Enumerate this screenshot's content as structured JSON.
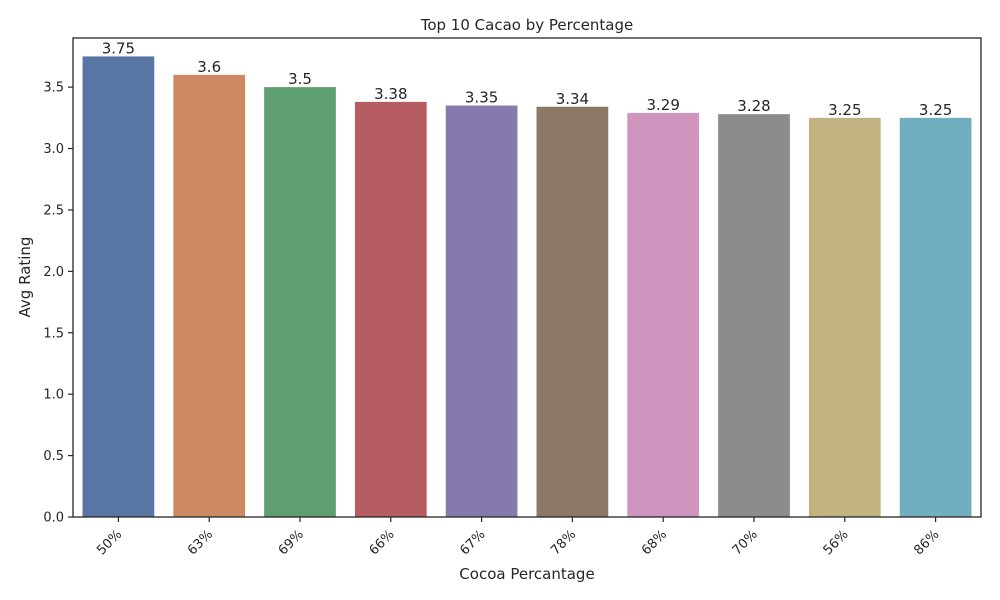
{
  "chart_data": {
    "type": "bar",
    "title": "Top 10 Cacao by Percentage",
    "xlabel": "Cocoa Percantage",
    "ylabel": "Avg Rating",
    "categories": [
      "50%",
      "63%",
      "69%",
      "66%",
      "67%",
      "78%",
      "68%",
      "70%",
      "56%",
      "86%"
    ],
    "values": [
      3.75,
      3.6,
      3.5,
      3.38,
      3.35,
      3.34,
      3.29,
      3.28,
      3.25,
      3.25
    ],
    "data_labels": [
      "3.75",
      "3.6",
      "3.5",
      "3.38",
      "3.35",
      "3.34",
      "3.29",
      "3.28",
      "3.25",
      "3.25"
    ],
    "ylim": [
      0,
      3.9
    ],
    "yticks": [
      0.0,
      0.5,
      1.0,
      1.5,
      2.0,
      2.5,
      3.0,
      3.5
    ],
    "ytick_labels": [
      "0.0",
      "0.5",
      "1.0",
      "1.5",
      "2.0",
      "2.5",
      "3.0",
      "3.5"
    ],
    "grid": false,
    "colors": [
      "#5975a4",
      "#cc8963",
      "#5f9e6e",
      "#b55d60",
      "#857aab",
      "#8d7866",
      "#d095bf",
      "#8c8c8c",
      "#c1b37f",
      "#71aec0"
    ]
  }
}
